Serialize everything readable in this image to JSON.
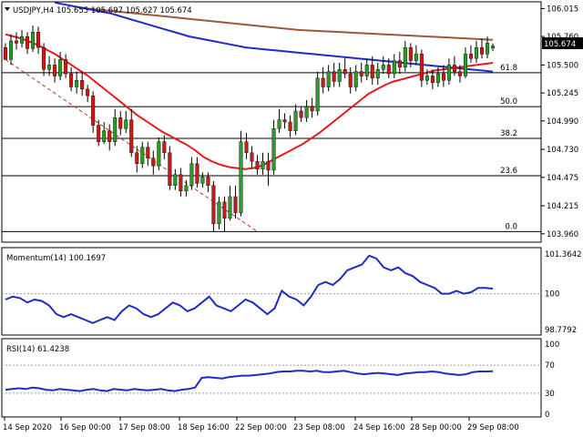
{
  "title": "USDJPY,H4  105.655 105.697 105.627 105.674",
  "colors": {
    "bull": "#1fa31f",
    "bear": "#e01010",
    "ma_fast": "#e31b1b",
    "ma_mid": "#1f2bc2",
    "ma_slow": "#9a5a3a",
    "indicator": "#1f2bc2",
    "fib": "#000000",
    "trend": "#c0392b",
    "price_tag_bg": "#000000",
    "price_tag_fg": "#ffffff"
  },
  "chart_data": [
    {
      "type": "candlestick",
      "title": "USDJPY,H4  105.655 105.697 105.627 105.674",
      "ylim": [
        103.9,
        106.06
      ],
      "y_ticks": [
        "106.015",
        "105.760",
        "105.500",
        "105.245",
        "104.990",
        "104.730",
        "104.475",
        "104.215",
        "103.960"
      ],
      "current_price": "105.674",
      "fib_levels": [
        {
          "label": "61.8",
          "value": 105.43
        },
        {
          "label": "50.0",
          "value": 105.12
        },
        {
          "label": "38.2",
          "value": 104.83
        },
        {
          "label": "23.6",
          "value": 104.49
        },
        {
          "label": "0.0",
          "value": 103.98
        }
      ],
      "trendline": {
        "from": [
          0,
          105.55
        ],
        "to": [
          46,
          103.98
        ]
      },
      "candles": [
        [
          105.66,
          105.55,
          105.7,
          105.55
        ],
        [
          105.55,
          105.72,
          105.78,
          105.5
        ],
        [
          105.72,
          105.7,
          105.8,
          105.64
        ],
        [
          105.7,
          105.76,
          105.82,
          105.66
        ],
        [
          105.76,
          105.65,
          105.8,
          105.6
        ],
        [
          105.65,
          105.8,
          105.86,
          105.62
        ],
        [
          105.8,
          105.66,
          105.85,
          105.6
        ],
        [
          105.66,
          105.46,
          105.7,
          105.4
        ],
        [
          105.46,
          105.5,
          105.58,
          105.4
        ],
        [
          105.5,
          105.4,
          105.56,
          105.34
        ],
        [
          105.4,
          105.55,
          105.62,
          105.36
        ],
        [
          105.55,
          105.42,
          105.6,
          105.38
        ],
        [
          105.42,
          105.3,
          105.48,
          105.26
        ],
        [
          105.3,
          105.36,
          105.44,
          105.24
        ],
        [
          105.36,
          105.28,
          105.44,
          105.22
        ],
        [
          105.28,
          105.22,
          105.32,
          105.16
        ],
        [
          105.22,
          104.95,
          105.26,
          104.88
        ],
        [
          104.95,
          104.8,
          105.0,
          104.76
        ],
        [
          104.8,
          104.9,
          104.98,
          104.78
        ],
        [
          104.9,
          104.8,
          104.96,
          104.72
        ],
        [
          104.8,
          105.02,
          105.1,
          104.76
        ],
        [
          105.02,
          104.92,
          105.08,
          104.86
        ],
        [
          104.92,
          105.0,
          105.08,
          104.88
        ],
        [
          105.0,
          104.7,
          105.1,
          104.66
        ],
        [
          104.7,
          104.6,
          104.76,
          104.52
        ],
        [
          104.6,
          104.75,
          104.8,
          104.56
        ],
        [
          104.75,
          104.65,
          104.8,
          104.58
        ],
        [
          104.65,
          104.58,
          104.72,
          104.5
        ],
        [
          104.58,
          104.8,
          104.84,
          104.54
        ],
        [
          104.8,
          104.7,
          104.86,
          104.64
        ],
        [
          104.7,
          104.4,
          104.76,
          104.36
        ],
        [
          104.4,
          104.5,
          104.55,
          104.36
        ],
        [
          104.5,
          104.35,
          104.56,
          104.3
        ],
        [
          104.35,
          104.4,
          104.45,
          104.3
        ],
        [
          104.4,
          104.6,
          104.66,
          104.36
        ],
        [
          104.6,
          104.42,
          104.66,
          104.38
        ],
        [
          104.42,
          104.48,
          104.52,
          104.38
        ],
        [
          104.48,
          104.4,
          104.52,
          104.34
        ],
        [
          104.4,
          104.05,
          104.44,
          103.98
        ],
        [
          104.05,
          104.25,
          104.3,
          104.0
        ],
        [
          104.25,
          104.1,
          104.3,
          103.98
        ],
        [
          104.1,
          104.3,
          104.4,
          104.08
        ],
        [
          104.3,
          104.15,
          104.4,
          104.1
        ],
        [
          104.15,
          104.8,
          104.9,
          104.12
        ],
        [
          104.8,
          104.7,
          104.88,
          104.64
        ],
        [
          104.7,
          104.62,
          104.76,
          104.56
        ],
        [
          104.62,
          104.55,
          104.68,
          104.5
        ],
        [
          104.55,
          104.62,
          104.7,
          104.5
        ],
        [
          104.62,
          104.54,
          104.7,
          104.4
        ],
        [
          104.54,
          104.92,
          105.0,
          104.5
        ],
        [
          104.92,
          105.0,
          105.1,
          104.88
        ],
        [
          105.0,
          104.98,
          105.06,
          104.92
        ],
        [
          104.98,
          104.9,
          105.04,
          104.84
        ],
        [
          104.9,
          105.08,
          105.14,
          104.86
        ],
        [
          105.08,
          105.02,
          105.12,
          104.98
        ],
        [
          105.02,
          105.12,
          105.18,
          104.98
        ],
        [
          105.12,
          105.08,
          105.2,
          105.02
        ],
        [
          105.08,
          105.38,
          105.44,
          105.04
        ],
        [
          105.38,
          105.3,
          105.48,
          105.24
        ],
        [
          105.3,
          105.44,
          105.5,
          105.26
        ],
        [
          105.44,
          105.35,
          105.52,
          105.3
        ],
        [
          105.35,
          105.46,
          105.52,
          105.3
        ],
        [
          105.46,
          105.42,
          105.56,
          105.38
        ],
        [
          105.42,
          105.3,
          105.48,
          105.24
        ],
        [
          105.3,
          105.44,
          105.5,
          105.26
        ],
        [
          105.44,
          105.4,
          105.52,
          105.34
        ],
        [
          105.4,
          105.5,
          105.56,
          105.36
        ],
        [
          105.5,
          105.38,
          105.58,
          105.32
        ],
        [
          105.38,
          105.46,
          105.52,
          105.32
        ],
        [
          105.46,
          105.5,
          105.58,
          105.42
        ],
        [
          105.5,
          105.42,
          105.56,
          105.38
        ],
        [
          105.42,
          105.54,
          105.6,
          105.38
        ],
        [
          105.54,
          105.48,
          105.62,
          105.42
        ],
        [
          105.48,
          105.66,
          105.72,
          105.44
        ],
        [
          105.66,
          105.54,
          105.7,
          105.48
        ],
        [
          105.54,
          105.6,
          105.68,
          105.5
        ],
        [
          105.6,
          105.36,
          105.64,
          105.3
        ],
        [
          105.36,
          105.4,
          105.46,
          105.32
        ],
        [
          105.4,
          105.34,
          105.46,
          105.28
        ],
        [
          105.34,
          105.42,
          105.48,
          105.3
        ],
        [
          105.42,
          105.36,
          105.5,
          105.3
        ],
        [
          105.36,
          105.5,
          105.56,
          105.32
        ],
        [
          105.5,
          105.44,
          105.58,
          105.4
        ],
        [
          105.44,
          105.4,
          105.5,
          105.34
        ],
        [
          105.4,
          105.6,
          105.66,
          105.38
        ],
        [
          105.6,
          105.56,
          105.68,
          105.52
        ],
        [
          105.56,
          105.66,
          105.72,
          105.52
        ],
        [
          105.66,
          105.6,
          105.74,
          105.56
        ],
        [
          105.6,
          105.7,
          105.76,
          105.56
        ],
        [
          105.655,
          105.674,
          105.697,
          105.627
        ]
      ],
      "ma_fast": [
        105.78,
        105.76,
        105.74,
        105.71,
        105.68,
        105.64,
        105.6,
        105.55,
        105.5,
        105.45,
        105.4,
        105.34,
        105.28,
        105.22,
        105.16,
        105.1,
        105.04,
        104.99,
        104.94,
        104.89,
        104.85,
        104.81,
        104.77,
        104.72,
        104.66,
        104.62,
        104.59,
        104.57,
        104.56,
        104.55,
        104.56,
        104.58,
        104.62,
        104.66,
        104.7,
        104.74,
        104.78,
        104.83,
        104.88,
        104.94,
        105.0,
        105.06,
        105.12,
        105.18,
        105.24,
        105.28,
        105.32,
        105.35,
        105.37,
        105.39,
        105.41,
        105.43,
        105.45,
        105.46,
        105.47,
        105.48,
        105.49,
        105.5,
        105.51,
        105.52
      ],
      "ma_mid": [
        106.07,
        106.05,
        106.03,
        106.01,
        105.99,
        105.97,
        105.94,
        105.91,
        105.88,
        105.85,
        105.82,
        105.79,
        105.76,
        105.74,
        105.72,
        105.7,
        105.68,
        105.66,
        105.65,
        105.64,
        105.63,
        105.62,
        105.61,
        105.6,
        105.59,
        105.58,
        105.57,
        105.56,
        105.55,
        105.54,
        105.53,
        105.52,
        105.51,
        105.5,
        105.49,
        105.48,
        105.47,
        105.46,
        105.45,
        105.44
      ],
      "ma_slow": [
        106.02,
        106.0,
        105.98,
        105.96,
        105.94,
        105.92,
        105.9,
        105.88,
        105.86,
        105.84,
        105.82,
        105.81,
        105.8,
        105.79,
        105.78,
        105.77,
        105.76,
        105.75,
        105.74,
        105.73
      ],
      "x_labels": [
        "14 Sep 2020",
        "16 Sep 00:00",
        "17 Sep 08:00",
        "18 Sep 16:00",
        "22 Sep 00:00",
        "23 Sep 08:00",
        "24 Sep 16:00",
        "28 Sep 00:00",
        "29 Sep 08:00"
      ]
    },
    {
      "type": "line",
      "title": "Momentum(14) 100.1697",
      "ylim": [
        98.65,
        101.45
      ],
      "y_ticks": [
        "101.3642",
        "100",
        "98.7792"
      ],
      "values": [
        99.8,
        99.9,
        99.85,
        99.7,
        99.8,
        99.75,
        99.6,
        99.3,
        99.2,
        99.3,
        99.2,
        99.1,
        99.0,
        99.1,
        99.2,
        99.1,
        99.4,
        99.6,
        99.5,
        99.3,
        99.2,
        99.3,
        99.5,
        99.7,
        99.6,
        99.4,
        99.5,
        99.7,
        99.9,
        99.6,
        99.5,
        99.4,
        99.6,
        99.8,
        99.7,
        99.5,
        99.3,
        99.5,
        100.1,
        99.9,
        99.8,
        99.6,
        99.9,
        100.3,
        100.4,
        100.3,
        100.5,
        100.8,
        100.9,
        101.0,
        101.3,
        101.2,
        100.9,
        100.8,
        100.9,
        100.7,
        100.6,
        100.4,
        100.3,
        100.2,
        100.0,
        100.0,
        100.1,
        100.0,
        100.05,
        100.2,
        100.2,
        100.17
      ]
    },
    {
      "type": "line",
      "title": "RSI(14) 61.4238",
      "ylim": [
        0,
        100
      ],
      "y_ticks": [
        "100",
        "70",
        "30",
        "0"
      ],
      "values": [
        35,
        36,
        37,
        36,
        38,
        37,
        35,
        34,
        36,
        35,
        34,
        33,
        35,
        36,
        34,
        33,
        36,
        35,
        34,
        36,
        35,
        34,
        35,
        36,
        34,
        33,
        35,
        36,
        38,
        52,
        53,
        52,
        51,
        53,
        54,
        55,
        55,
        56,
        57,
        58,
        60,
        61,
        61,
        62,
        62,
        61,
        62,
        60,
        60,
        61,
        62,
        60,
        58,
        57,
        58,
        59,
        58,
        57,
        56,
        58,
        59,
        60,
        60,
        61,
        60,
        58,
        57,
        56,
        57,
        60,
        61,
        61,
        61.4
      ]
    }
  ]
}
